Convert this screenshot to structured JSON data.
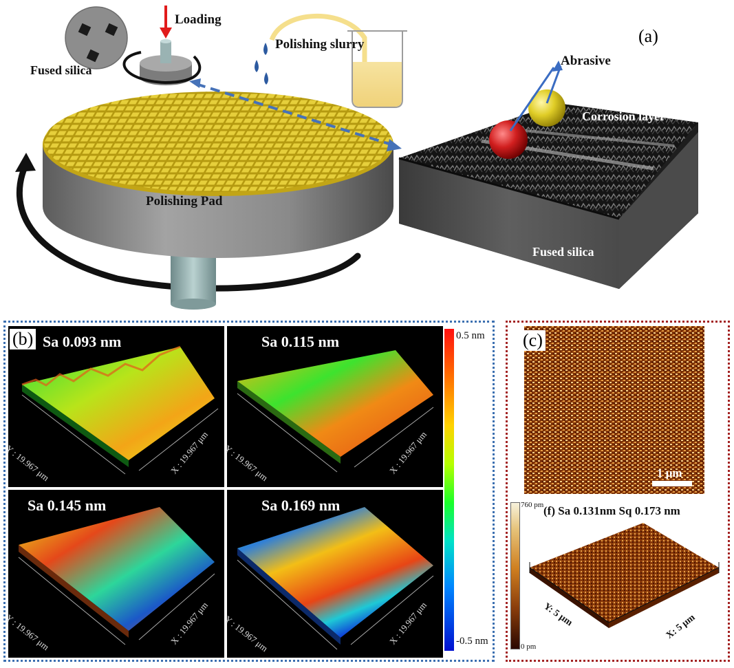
{
  "panel_a": {
    "letter": "(a)",
    "loading": "Loading",
    "fused_silica_top": "Fused silica",
    "polishing_slurry": "Polishing slurry",
    "polishing_pad": "Polishing Pad",
    "abrasive": "Abrasive",
    "corrosion_layer": "Corrosion layer",
    "fused_silica_bottom": "Fused silica"
  },
  "panel_b": {
    "letter": "(b)",
    "colorbar": {
      "max": "0.5 nm",
      "min": "-0.5 nm"
    },
    "axis_x": "X : 19.967 μm",
    "axis_y": "Y : 19.967 μm",
    "images": [
      {
        "sa": "Sa 0.093 nm"
      },
      {
        "sa": "Sa 0.115 nm"
      },
      {
        "sa": "Sa 0.145 nm"
      },
      {
        "sa": "Sa 0.169 nm"
      }
    ]
  },
  "panel_c": {
    "letter": "(c)",
    "scale_bar": "1 μm",
    "f_caption": "(f) Sa 0.131nm Sq 0.173 nm",
    "f_colorbar_max": "760 pm",
    "f_colorbar_min": "0 pm",
    "f_axis_x": "X: 5 μm",
    "f_axis_y": "Y: 5 μm"
  }
}
